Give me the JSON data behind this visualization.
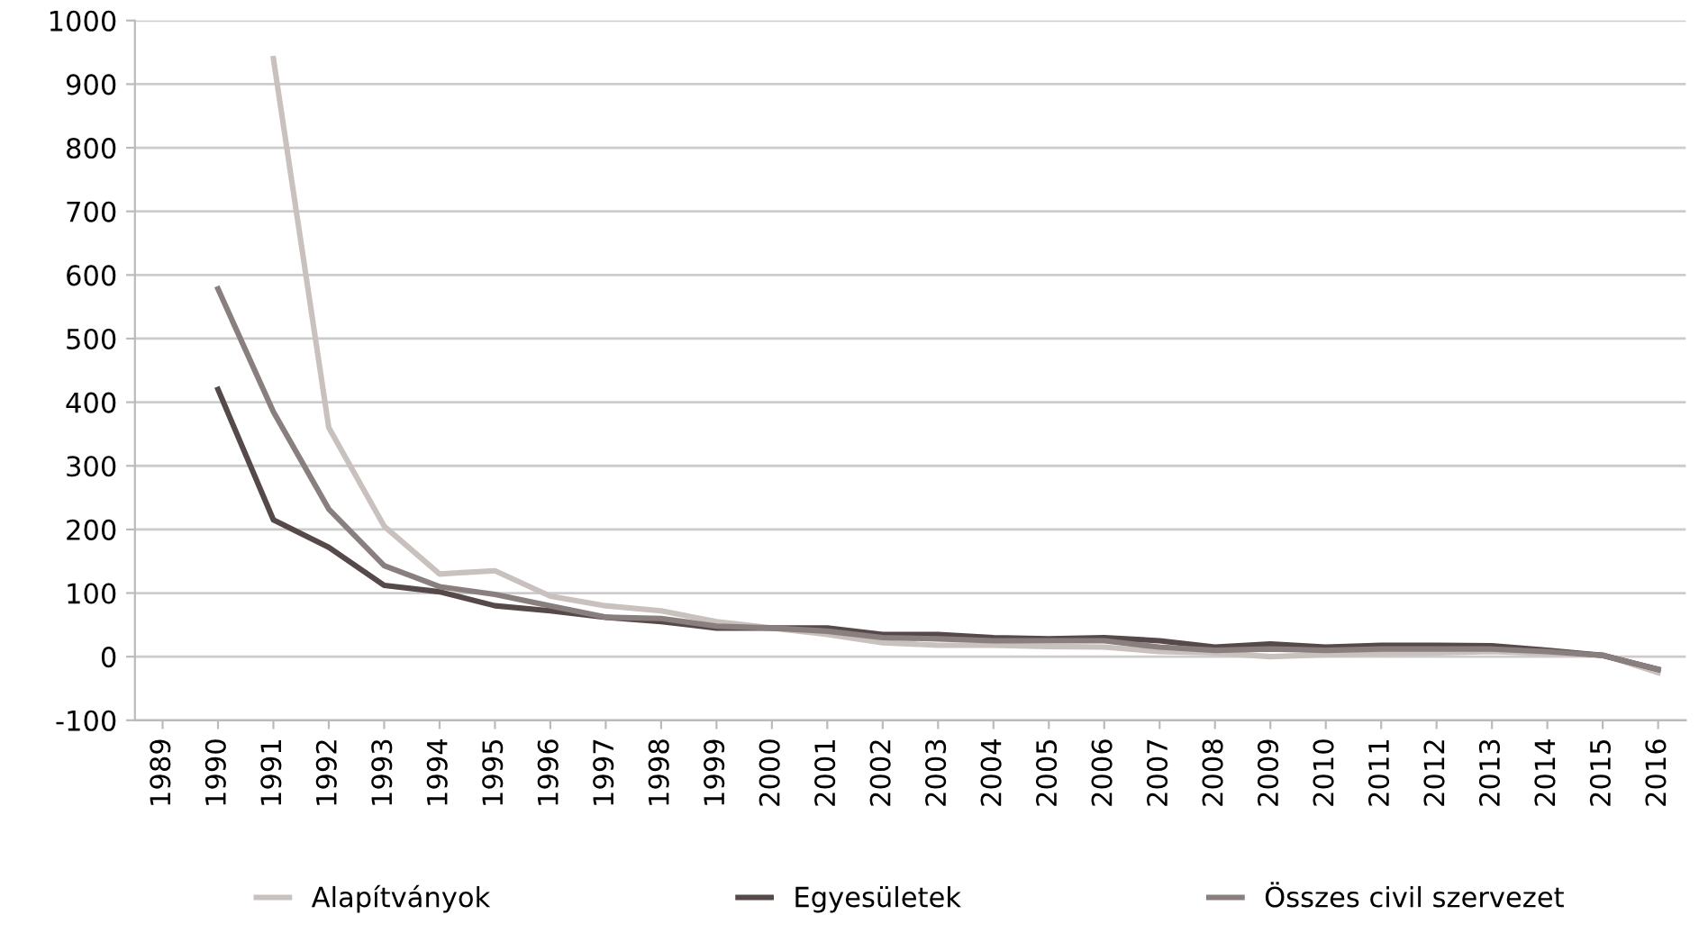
{
  "chart_data": {
    "type": "line",
    "categories": [
      "1989",
      "1990",
      "1991",
      "1992",
      "1993",
      "1994",
      "1995",
      "1996",
      "1997",
      "1998",
      "1999",
      "2000",
      "2001",
      "2002",
      "2003",
      "2004",
      "2005",
      "2006",
      "2007",
      "2008",
      "2009",
      "2010",
      "2011",
      "2012",
      "2013",
      "2014",
      "2015",
      "2016"
    ],
    "series": [
      {
        "name": "Alapítványok",
        "color": "#c9c1be",
        "values": [
          null,
          null,
          940,
          360,
          205,
          130,
          135,
          95,
          80,
          72,
          55,
          45,
          35,
          22,
          18,
          18,
          16,
          15,
          8,
          6,
          0,
          3,
          5,
          6,
          8,
          5,
          3,
          -25
        ]
      },
      {
        "name": "Egyesületek",
        "color": "#55494a",
        "values": [
          null,
          420,
          215,
          172,
          112,
          102,
          80,
          72,
          62,
          55,
          45,
          45,
          45,
          35,
          35,
          30,
          28,
          30,
          25,
          15,
          20,
          15,
          18,
          18,
          17,
          10,
          2,
          -20
        ]
      },
      {
        "name": "Összes civil szervezet",
        "color": "#8a7f7f",
        "values": [
          null,
          578,
          385,
          232,
          143,
          110,
          98,
          80,
          62,
          60,
          48,
          45,
          40,
          30,
          28,
          25,
          25,
          25,
          15,
          10,
          12,
          10,
          12,
          12,
          12,
          8,
          2,
          -20
        ]
      }
    ],
    "ylim": [
      -100,
      1000
    ],
    "yticks": [
      -100,
      0,
      100,
      200,
      300,
      400,
      500,
      600,
      700,
      800,
      900,
      1000
    ],
    "grid": "y",
    "legend": "bottom"
  }
}
